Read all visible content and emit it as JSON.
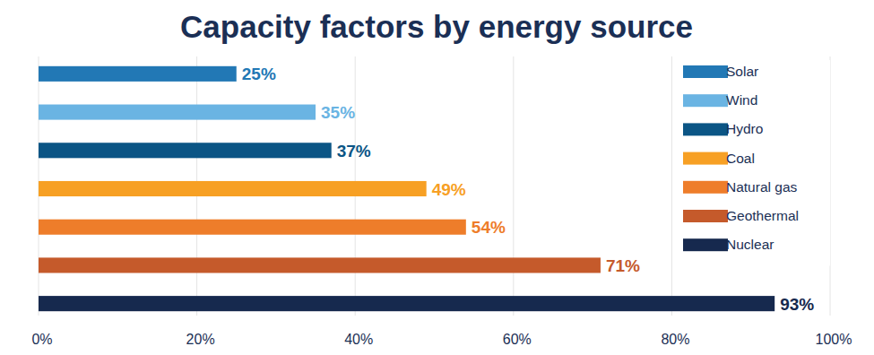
{
  "chart_data": {
    "type": "bar",
    "orientation": "horizontal",
    "title": "Capacity factors by energy source",
    "categories": [
      "Solar",
      "Wind",
      "Hydro",
      "Coal",
      "Natural gas",
      "Geothermal",
      "Nuclear"
    ],
    "values": [
      25,
      35,
      37,
      49,
      54,
      71,
      93
    ],
    "value_labels": [
      "25%",
      "35%",
      "37%",
      "49%",
      "54%",
      "71%",
      "93%"
    ],
    "colors": [
      "#2278b5",
      "#6ab4e3",
      "#0b5585",
      "#f7a024",
      "#ee7d2a",
      "#c55a2b",
      "#16294e"
    ],
    "xlim": [
      0,
      100
    ],
    "xticks": [
      {
        "value": 0,
        "label": "0%"
      },
      {
        "value": 20,
        "label": "20%"
      },
      {
        "value": 40,
        "label": "40%"
      },
      {
        "value": 60,
        "label": "60%"
      },
      {
        "value": 80,
        "label": "80%"
      },
      {
        "value": 100,
        "label": "100%"
      }
    ],
    "grid": true,
    "data_labels": true,
    "tick_labels": "x",
    "legend": "upper right"
  }
}
